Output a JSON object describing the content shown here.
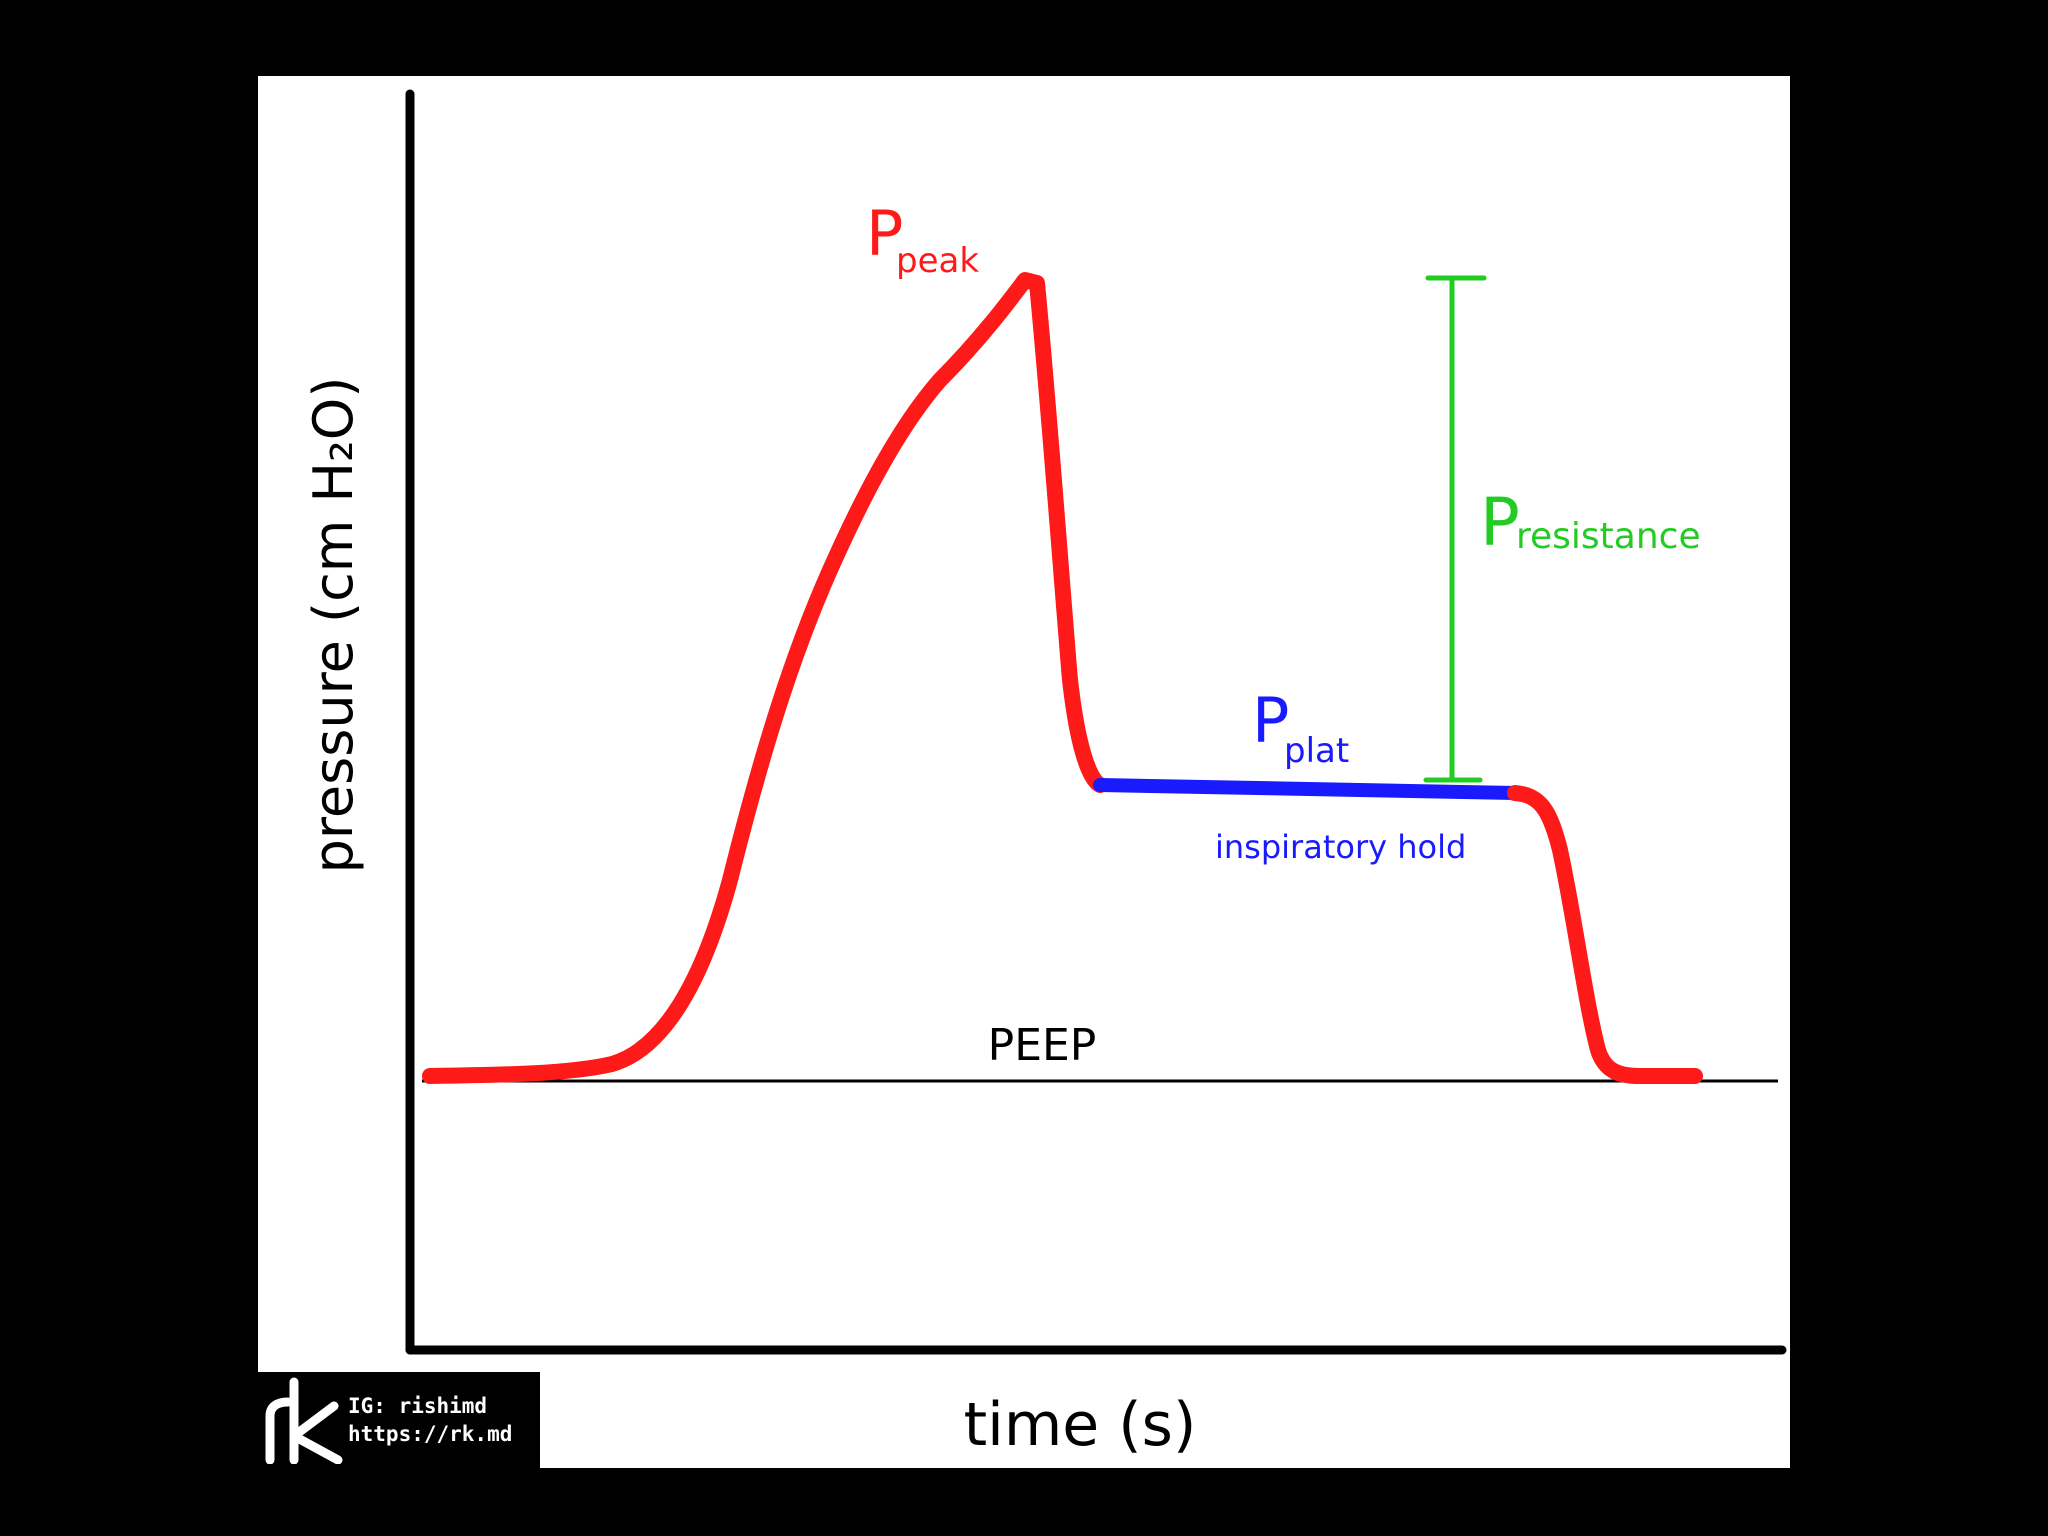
{
  "diagram": {
    "type": "ventilator pressure-time curve",
    "axes": {
      "ylabel": "pressure (cm H₂O)",
      "xlabel": "time (s)"
    },
    "annotations": {
      "peak": {
        "main": "P",
        "sub": "peak"
      },
      "plat": {
        "main": "P",
        "sub": "plat"
      },
      "resistance": {
        "main": "P",
        "sub": "resistance"
      },
      "hold": "inspiratory hold",
      "peep": "PEEP"
    },
    "colors": {
      "curve": "#ff1a1a",
      "plateau": "#1a1aff",
      "resistance": "#22cc22",
      "axis": "#000000",
      "background": "#ffffff",
      "frame": "#000000"
    }
  },
  "watermark": {
    "line1": "IG: rishimd",
    "line2": "https://rk.md",
    "logo_icon": "rk-logo-icon"
  }
}
